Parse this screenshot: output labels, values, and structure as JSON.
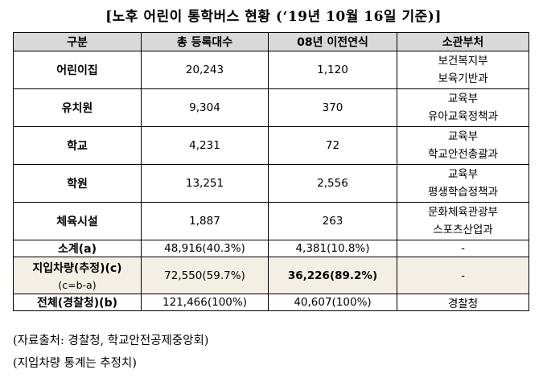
{
  "title": "[노후 어린이 통학버스 현황 (‘19년 10월 16일 기준)]",
  "table": {
    "headers": [
      "구분",
      "총 등록대수",
      "08년 이전연식",
      "소관부처"
    ],
    "rows": [
      {
        "label": "어린이집",
        "total": "20,243",
        "old": "1,120",
        "dept": [
          "보건복지부",
          "보육기반과"
        ]
      },
      {
        "label": "유치원",
        "total": "9,304",
        "old": "370",
        "dept": [
          "교육부",
          "유아교육정책과"
        ]
      },
      {
        "label": "학교",
        "total": "4,231",
        "old": "72",
        "dept": [
          "교육부",
          "학교안전총괄과"
        ]
      },
      {
        "label": "학원",
        "total": "13,251",
        "old": "2,556",
        "dept": [
          "교육부",
          "평생학습정책과"
        ]
      },
      {
        "label": "체육시설",
        "total": "1,887",
        "old": "263",
        "dept": [
          "문화체육관광부",
          "스포츠산업과"
        ]
      }
    ],
    "subtotal": {
      "label": "소계(a)",
      "total": "48,916(40.3%)",
      "old": "4,381(10.8%)",
      "dept": "-"
    },
    "local": {
      "label": "지입차량(추정)(c)",
      "formula": "(c=b-a)",
      "total": "72,550(59.7%)",
      "old": "36,226(89.2%)",
      "dept": "-"
    },
    "overall": {
      "label": "전체(경찰청)(b)",
      "total": "121,466(100%)",
      "old": "40,607(100%)",
      "dept": "경찰청"
    }
  },
  "notes": [
    "(자료출처: 경찰청, 학교안전공제중앙회)",
    "(지입차량 통계는 추정치)"
  ]
}
